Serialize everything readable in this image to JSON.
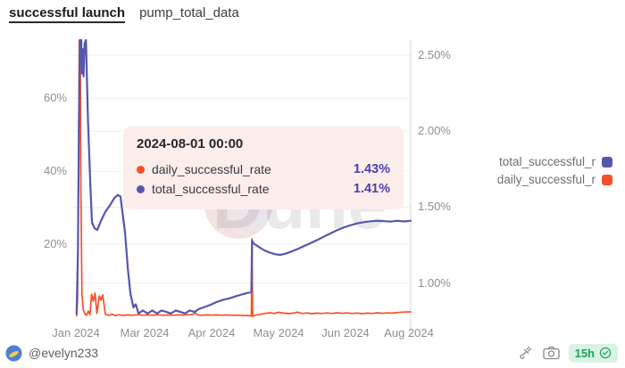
{
  "header": {
    "title": "successful launch",
    "query_name": "pump_total_data"
  },
  "tooltip": {
    "title": "2024-08-01 00:00",
    "rows": [
      {
        "series": "daily_successful_rate",
        "value": "1.43%",
        "color": "#F4512B"
      },
      {
        "series": "total_successful_rate",
        "value": "1.41%",
        "color": "#5457AE"
      }
    ]
  },
  "legend": {
    "position": "right",
    "items": [
      {
        "label": "total_successful_r",
        "color": "#5457AE"
      },
      {
        "label": "daily_successful_r",
        "color": "#F4512B"
      }
    ]
  },
  "watermark": {
    "text": "Dune"
  },
  "footer": {
    "handle": "@evelyn233",
    "fork_icon": "fork-icon",
    "camera_icon": "camera-icon",
    "badge": {
      "text": "15h",
      "icon": "check-circle-icon"
    }
  },
  "colors": {
    "daily_line": "#F4512B",
    "total_line": "#5457AE",
    "grid": "#efefef",
    "axis_line": "#d9d9d9",
    "tooltip_bg": "#fbedea",
    "badge_bg": "#d9f3e3",
    "badge_text": "#1ea15f"
  },
  "chart_data": {
    "type": "line",
    "title": "successful launch",
    "x_range": [
      "2024-01-01",
      "2024-08-01"
    ],
    "grid": true,
    "legend_position": "right",
    "x_ticks": [
      {
        "label": "Jan 2024",
        "t": 0.0
      },
      {
        "label": "Mar 2024",
        "t": 0.2053
      },
      {
        "label": "Apr 2024",
        "t": 0.4053
      },
      {
        "label": "May 2024",
        "t": 0.6053
      },
      {
        "label": "Jun 2024",
        "t": 0.8053
      },
      {
        "label": "Aug 2024",
        "t": 0.9947
      }
    ],
    "axes": {
      "left": {
        "min": -1.5,
        "max": 76.0,
        "ticks": [
          {
            "v": 20,
            "label": "20%"
          },
          {
            "v": 40,
            "label": "40%"
          },
          {
            "v": 60,
            "label": "60%"
          }
        ]
      },
      "right": {
        "min": 0.74,
        "max": 2.6,
        "ticks": [
          {
            "v": 1.0,
            "label": "1.00%"
          },
          {
            "v": 1.5,
            "label": "1.50%"
          },
          {
            "v": 2.0,
            "label": "2.00%"
          },
          {
            "v": 2.5,
            "label": "2.50%"
          }
        ]
      }
    },
    "series": [
      {
        "name": "daily_successful_rate",
        "axis": "left",
        "color": "#F4512B",
        "unit": "%",
        "points": [
          [
            0.002,
            0.3
          ],
          [
            0.005,
            5.0
          ],
          [
            0.008,
            45.0
          ],
          [
            0.01,
            76.0
          ],
          [
            0.013,
            76.0
          ],
          [
            0.015,
            35.0
          ],
          [
            0.018,
            6.0
          ],
          [
            0.022,
            2.0
          ],
          [
            0.027,
            0.9
          ],
          [
            0.032,
            0.5
          ],
          [
            0.037,
            1.6
          ],
          [
            0.042,
            0.7
          ],
          [
            0.047,
            6.3
          ],
          [
            0.052,
            4.4
          ],
          [
            0.057,
            6.6
          ],
          [
            0.063,
            1.0
          ],
          [
            0.07,
            5.8
          ],
          [
            0.075,
            4.6
          ],
          [
            0.08,
            6.1
          ],
          [
            0.088,
            0.8
          ],
          [
            0.098,
            0.45
          ],
          [
            0.108,
            0.8
          ],
          [
            0.118,
            0.4
          ],
          [
            0.128,
            0.65
          ],
          [
            0.14,
            0.45
          ],
          [
            0.155,
            0.6
          ],
          [
            0.17,
            0.5
          ],
          [
            0.185,
            0.65
          ],
          [
            0.2,
            0.5
          ],
          [
            0.215,
            0.6
          ],
          [
            0.23,
            0.5
          ],
          [
            0.245,
            0.62
          ],
          [
            0.26,
            0.5
          ],
          [
            0.275,
            0.58
          ],
          [
            0.29,
            0.5
          ],
          [
            0.305,
            0.6
          ],
          [
            0.32,
            0.52
          ],
          [
            0.335,
            0.62
          ],
          [
            0.35,
            0.72
          ],
          [
            0.356,
            1.25
          ],
          [
            0.362,
            0.6
          ],
          [
            0.375,
            0.5
          ],
          [
            0.39,
            0.6
          ],
          [
            0.405,
            0.52
          ],
          [
            0.42,
            0.6
          ],
          [
            0.435,
            0.5
          ],
          [
            0.45,
            0.58
          ],
          [
            0.465,
            0.5
          ],
          [
            0.48,
            0.52
          ],
          [
            0.495,
            0.45
          ],
          [
            0.51,
            0.42
          ],
          [
            0.52,
            0.35
          ],
          [
            0.524,
            0.3
          ],
          [
            0.526,
            21.5
          ],
          [
            0.528,
            0.18
          ],
          [
            0.535,
            0.5
          ],
          [
            0.55,
            0.75
          ],
          [
            0.565,
            1.0
          ],
          [
            0.58,
            1.2
          ],
          [
            0.592,
            1.0
          ],
          [
            0.605,
            1.3
          ],
          [
            0.62,
            1.1
          ],
          [
            0.635,
            0.95
          ],
          [
            0.65,
            1.1
          ],
          [
            0.662,
            1.35
          ],
          [
            0.675,
            1.0
          ],
          [
            0.69,
            1.15
          ],
          [
            0.705,
            0.95
          ],
          [
            0.72,
            1.1
          ],
          [
            0.735,
            1.0
          ],
          [
            0.75,
            1.15
          ],
          [
            0.765,
            1.0
          ],
          [
            0.78,
            1.2
          ],
          [
            0.795,
            1.05
          ],
          [
            0.81,
            1.15
          ],
          [
            0.825,
            1.0
          ],
          [
            0.84,
            1.12
          ],
          [
            0.855,
            0.95
          ],
          [
            0.87,
            1.1
          ],
          [
            0.885,
            1.0
          ],
          [
            0.9,
            1.18
          ],
          [
            0.915,
            1.05
          ],
          [
            0.93,
            1.15
          ],
          [
            0.945,
            1.1
          ],
          [
            0.96,
            1.25
          ],
          [
            0.975,
            1.35
          ],
          [
            1.0,
            1.43
          ]
        ]
      },
      {
        "name": "total_successful_rate",
        "axis": "right",
        "color": "#5457AE",
        "unit": "%",
        "points": [
          [
            0.002,
            0.8
          ],
          [
            0.006,
            1.2
          ],
          [
            0.009,
            2.05
          ],
          [
            0.012,
            2.6
          ],
          [
            0.016,
            2.6
          ],
          [
            0.018,
            2.38
          ],
          [
            0.021,
            2.54
          ],
          [
            0.023,
            2.36
          ],
          [
            0.026,
            2.58
          ],
          [
            0.03,
            2.6
          ],
          [
            0.036,
            2.08
          ],
          [
            0.043,
            1.66
          ],
          [
            0.048,
            1.4
          ],
          [
            0.056,
            1.36
          ],
          [
            0.064,
            1.35
          ],
          [
            0.075,
            1.41
          ],
          [
            0.088,
            1.47
          ],
          [
            0.101,
            1.51
          ],
          [
            0.115,
            1.56
          ],
          [
            0.125,
            1.58
          ],
          [
            0.133,
            1.57
          ],
          [
            0.139,
            1.47
          ],
          [
            0.147,
            1.33
          ],
          [
            0.155,
            1.1
          ],
          [
            0.163,
            0.93
          ],
          [
            0.172,
            0.84
          ],
          [
            0.179,
            0.86
          ],
          [
            0.187,
            0.8
          ],
          [
            0.2,
            0.82
          ],
          [
            0.214,
            0.8
          ],
          [
            0.228,
            0.82
          ],
          [
            0.242,
            0.8
          ],
          [
            0.256,
            0.82
          ],
          [
            0.27,
            0.81
          ],
          [
            0.284,
            0.8
          ],
          [
            0.298,
            0.82
          ],
          [
            0.312,
            0.81
          ],
          [
            0.326,
            0.8
          ],
          [
            0.34,
            0.82
          ],
          [
            0.354,
            0.81
          ],
          [
            0.368,
            0.83
          ],
          [
            0.381,
            0.84
          ],
          [
            0.4,
            0.855
          ],
          [
            0.42,
            0.875
          ],
          [
            0.44,
            0.89
          ],
          [
            0.46,
            0.9
          ],
          [
            0.48,
            0.915
          ],
          [
            0.5,
            0.928
          ],
          [
            0.515,
            0.936
          ],
          [
            0.524,
            0.94
          ],
          [
            0.526,
            1.28
          ],
          [
            0.53,
            1.262
          ],
          [
            0.538,
            1.25
          ],
          [
            0.55,
            1.232
          ],
          [
            0.565,
            1.213
          ],
          [
            0.58,
            1.2
          ],
          [
            0.595,
            1.19
          ],
          [
            0.61,
            1.186
          ],
          [
            0.625,
            1.193
          ],
          [
            0.64,
            1.205
          ],
          [
            0.66,
            1.222
          ],
          [
            0.68,
            1.242
          ],
          [
            0.7,
            1.262
          ],
          [
            0.72,
            1.283
          ],
          [
            0.74,
            1.305
          ],
          [
            0.76,
            1.327
          ],
          [
            0.78,
            1.348
          ],
          [
            0.8,
            1.366
          ],
          [
            0.82,
            1.381
          ],
          [
            0.84,
            1.393
          ],
          [
            0.86,
            1.401
          ],
          [
            0.88,
            1.407
          ],
          [
            0.9,
            1.41
          ],
          [
            0.92,
            1.408
          ],
          [
            0.94,
            1.405
          ],
          [
            0.96,
            1.41
          ],
          [
            0.98,
            1.406
          ],
          [
            1.0,
            1.41
          ]
        ]
      }
    ]
  }
}
